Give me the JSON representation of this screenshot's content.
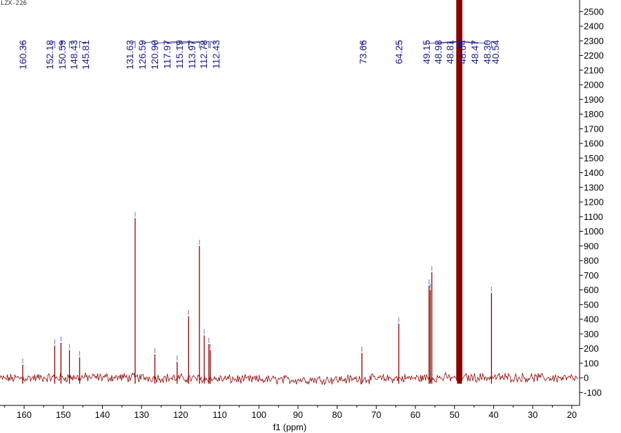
{
  "sample_id": "LZX-226",
  "chart_data": {
    "type": "line",
    "xlabel": "f1 (ppm)",
    "ylabel": "",
    "xlim": [
      165,
      18
    ],
    "ylim": [
      -150,
      2560
    ],
    "x_axis_reversed": true,
    "x_ticks": [
      160,
      150,
      140,
      130,
      120,
      110,
      100,
      90,
      80,
      70,
      60,
      50,
      40,
      30,
      20
    ],
    "y_ticks": [
      -100,
      0,
      100,
      200,
      300,
      400,
      500,
      600,
      700,
      800,
      900,
      1000,
      1100,
      1200,
      1300,
      1400,
      1500,
      1600,
      1700,
      1800,
      1900,
      2000,
      2100,
      2200,
      2300,
      2400,
      2500
    ],
    "y_axis_side": "right",
    "grid": false,
    "colors": {
      "spectrum": "#8b0000",
      "peak_labels": "#1a1a8c",
      "axes": "#000000"
    },
    "peak_labels": [
      "160.36",
      "152.18",
      "150.59",
      "148.43",
      "145.81",
      "131.63",
      "126.59",
      "120.90",
      "117.97",
      "115.19",
      "113.97",
      "112.78",
      "112.43",
      "73.66",
      "64.25",
      "49.15",
      "48.98",
      "48.81",
      "48.64",
      "48.47",
      "48.30",
      "40.54"
    ],
    "peaks": [
      {
        "ppm": 160.36,
        "intensity": 90
      },
      {
        "ppm": 152.18,
        "intensity": 220
      },
      {
        "ppm": 150.59,
        "intensity": 240
      },
      {
        "ppm": 148.43,
        "intensity": 190
      },
      {
        "ppm": 145.81,
        "intensity": 140
      },
      {
        "ppm": 131.63,
        "intensity": 1090
      },
      {
        "ppm": 126.59,
        "intensity": 160
      },
      {
        "ppm": 120.9,
        "intensity": 110
      },
      {
        "ppm": 117.97,
        "intensity": 420
      },
      {
        "ppm": 115.19,
        "intensity": 900
      },
      {
        "ppm": 113.97,
        "intensity": 290
      },
      {
        "ppm": 112.78,
        "intensity": 230
      },
      {
        "ppm": 112.43,
        "intensity": 190
      },
      {
        "ppm": 73.66,
        "intensity": 170
      },
      {
        "ppm": 64.25,
        "intensity": 370
      },
      {
        "ppm": 56.5,
        "intensity": 630
      },
      {
        "ppm": 56.2,
        "intensity": 600
      },
      {
        "ppm": 55.8,
        "intensity": 720
      },
      {
        "ppm": 49.15,
        "intensity": 2560
      },
      {
        "ppm": 48.98,
        "intensity": 2560
      },
      {
        "ppm": 48.81,
        "intensity": 2560
      },
      {
        "ppm": 48.64,
        "intensity": 2560
      },
      {
        "ppm": 48.47,
        "intensity": 2560
      },
      {
        "ppm": 48.3,
        "intensity": 2560
      },
      {
        "ppm": 40.54,
        "intensity": 580
      }
    ]
  }
}
